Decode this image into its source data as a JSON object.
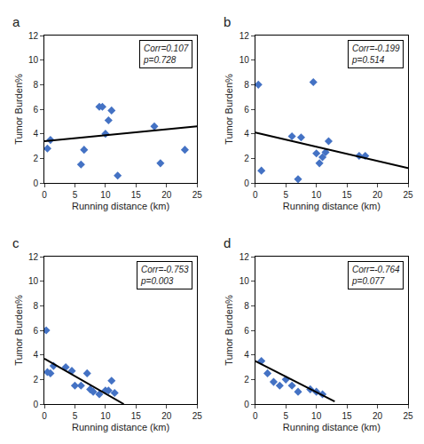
{
  "chart_data": [
    {
      "type": "scatter",
      "title": "a",
      "x_label": "Running distance (km)",
      "y_label": "Tumor Burden%",
      "series": [
        {
          "type": "scatter",
          "marker": "diamond",
          "color": "#4472C4",
          "x": [
            0.5,
            1.0,
            6.0,
            6.5,
            9.0,
            9.5,
            10.0,
            10.5,
            11.0,
            12.0,
            18.0,
            19.0,
            23.0
          ],
          "values": [
            2.8,
            3.5,
            1.5,
            2.7,
            6.2,
            6.2,
            4.0,
            5.1,
            5.9,
            0.6,
            4.6,
            1.6,
            2.7
          ]
        },
        {
          "type": "line",
          "line_style": "solid",
          "color": "black",
          "x": [
            0,
            25
          ],
          "values": [
            3.4,
            4.6
          ]
        }
      ],
      "annotations": [
        "Corr=0.107",
        "p=0.728"
      ],
      "xlim": [
        0,
        25
      ],
      "ylim": [
        0,
        12
      ],
      "xticks": [
        0,
        5,
        10,
        15,
        20,
        25
      ],
      "yticks": [
        0,
        2,
        4,
        6,
        8,
        10,
        12
      ],
      "grid": false
    },
    {
      "type": "scatter",
      "title": "b",
      "x_label": "Running distance (km)",
      "y_label": "Tumor Burden%",
      "series": [
        {
          "type": "scatter",
          "marker": "diamond",
          "color": "#4472C4",
          "x": [
            0.5,
            1.0,
            6.0,
            7.0,
            7.5,
            9.5,
            10.0,
            10.5,
            11.0,
            11.5,
            12.0,
            17.0,
            18.0
          ],
          "values": [
            8.0,
            1.0,
            3.8,
            0.3,
            3.7,
            8.2,
            2.4,
            1.6,
            2.1,
            2.5,
            3.4,
            2.2,
            2.2
          ]
        },
        {
          "type": "line",
          "line_style": "solid",
          "color": "black",
          "x": [
            0,
            25
          ],
          "values": [
            4.1,
            1.2
          ]
        }
      ],
      "annotations": [
        "Corr=-0.199",
        "p=0.514"
      ],
      "xlim": [
        0,
        25
      ],
      "ylim": [
        0,
        12
      ],
      "xticks": [
        0,
        5,
        10,
        15,
        20,
        25
      ],
      "yticks": [
        0,
        2,
        4,
        6,
        8,
        10,
        12
      ],
      "grid": false
    },
    {
      "type": "scatter",
      "title": "c",
      "x_label": "Running distance (km)",
      "y_label": "Tumor Burden%",
      "series": [
        {
          "type": "scatter",
          "marker": "diamond",
          "color": "#4472C4",
          "x": [
            0.3,
            0.5,
            1.0,
            1.5,
            3.5,
            4.5,
            5.0,
            6.0,
            7.0,
            7.5,
            8.0,
            9.0,
            10.0,
            10.5,
            11.0,
            11.5
          ],
          "values": [
            6.0,
            2.6,
            2.5,
            3.1,
            3.0,
            2.7,
            1.5,
            1.5,
            2.5,
            1.2,
            1.0,
            0.8,
            1.1,
            1.1,
            1.9,
            0.9
          ]
        },
        {
          "type": "line",
          "line_style": "solid",
          "color": "black",
          "x": [
            0,
            13
          ],
          "values": [
            3.7,
            0.0
          ]
        }
      ],
      "annotations": [
        "Corr=-0.753",
        "p=0.003"
      ],
      "xlim": [
        0,
        25
      ],
      "ylim": [
        0,
        12
      ],
      "xticks": [
        0,
        5,
        10,
        15,
        20,
        25
      ],
      "yticks": [
        0,
        2,
        4,
        6,
        8,
        10,
        12
      ],
      "grid": false
    },
    {
      "type": "scatter",
      "title": "d",
      "x_label": "Running distance (km)",
      "y_label": "Tumor Burden%",
      "series": [
        {
          "type": "scatter",
          "marker": "diamond",
          "color": "#4472C4",
          "x": [
            1.0,
            2.0,
            3.0,
            4.0,
            5.0,
            6.0,
            7.0,
            9.0,
            10.0,
            11.0
          ],
          "values": [
            3.5,
            2.5,
            1.8,
            1.5,
            2.0,
            1.5,
            1.0,
            1.2,
            1.0,
            0.8
          ]
        },
        {
          "type": "line",
          "line_style": "solid",
          "color": "black",
          "x": [
            0,
            13
          ],
          "values": [
            3.5,
            0.2
          ]
        }
      ],
      "annotations": [
        "Corr=-0.764",
        "p=0.077"
      ],
      "xlim": [
        0,
        25
      ],
      "ylim": [
        0,
        12
      ],
      "xticks": [
        0,
        5,
        10,
        15,
        20,
        25
      ],
      "yticks": [
        0,
        2,
        4,
        6,
        8,
        10,
        12
      ],
      "grid": false
    }
  ]
}
